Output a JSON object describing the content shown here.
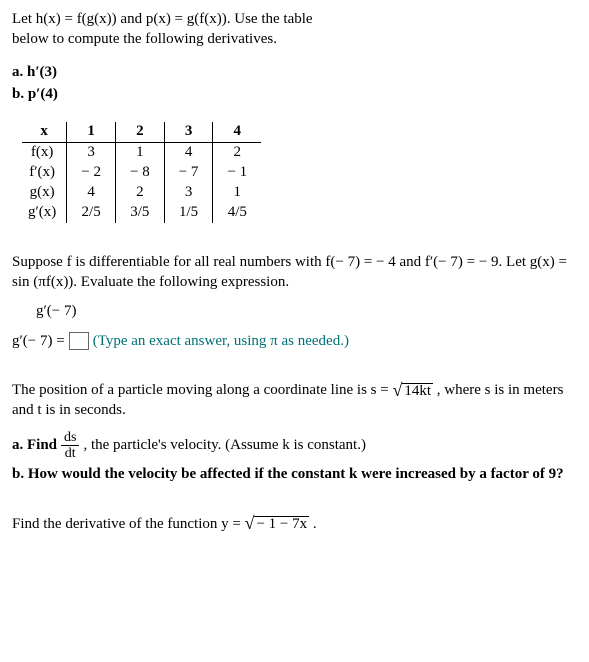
{
  "problem1": {
    "prompt": "Let h(x) = f(g(x)) and p(x) = g(f(x)). Use the table below to compute the following derivatives.",
    "parts": {
      "a": "a. h′(3)",
      "b": "b. p′(4)"
    },
    "table": {
      "header": [
        "x",
        "1",
        "2",
        "3",
        "4"
      ],
      "rows": [
        {
          "label": "f(x)",
          "cells": [
            "3",
            "1",
            "4",
            "2"
          ]
        },
        {
          "label": "f′(x)",
          "cells": [
            "− 2",
            "− 8",
            "− 7",
            "− 1"
          ]
        },
        {
          "label": "g(x)",
          "cells": [
            "4",
            "2",
            "3",
            "1"
          ]
        },
        {
          "label": "g′(x)",
          "cells": [
            "2/5",
            "3/5",
            "1/5",
            "4/5"
          ]
        }
      ]
    }
  },
  "problem2": {
    "prompt": "Suppose f is differentiable for all real numbers with f(− 7) = − 4 and f′(− 7) = − 9. Let g(x) = sin (πf(x)). Evaluate the following expression.",
    "target": "g′(− 7)",
    "answer_label": "g′(− 7) =",
    "hint": "(Type an exact answer, using π as needed.)"
  },
  "problem3": {
    "prompt_before": "The position of a particle moving along a coordinate line is s = ",
    "radicand": "14kt",
    "prompt_after": " , where s is in meters and t is in seconds.",
    "a_before": "a. Find ",
    "a_num": "ds",
    "a_den": "dt",
    "a_after": ", the particle's velocity. (Assume k is constant.)",
    "b": "b. How would the velocity be affected if the constant k were increased by a factor of 9?"
  },
  "problem4": {
    "before": "Find the derivative of the function y = ",
    "radicand": "− 1 − 7x",
    "after": " ."
  }
}
